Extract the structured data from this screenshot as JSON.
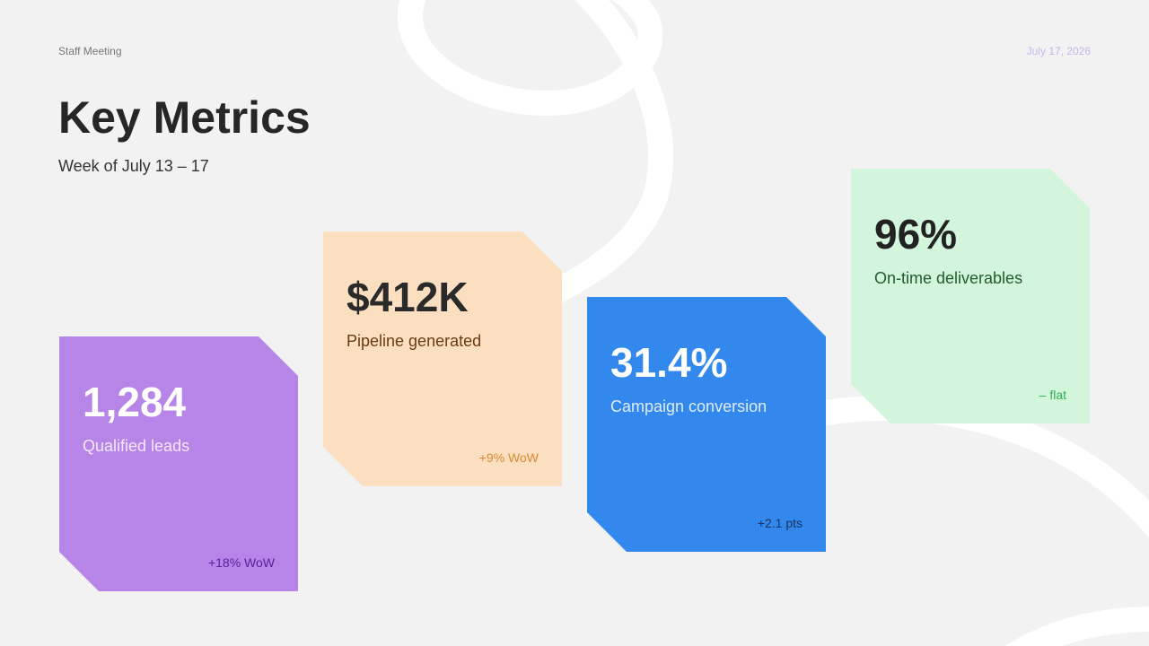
{
  "header": {
    "label": "Staff Meeting",
    "date": "July 17, 2026",
    "title": "Key Metrics",
    "subtitle": "Week of July 13 – 17"
  },
  "cards": [
    {
      "value": "1,284",
      "label": "Qualified leads",
      "delta": "+18% WoW"
    },
    {
      "value": "$412K",
      "label": "Pipeline generated",
      "delta": "+9% WoW"
    },
    {
      "value": "31.4%",
      "label": "Campaign conversion",
      "delta": "+2.1 pts"
    },
    {
      "value": "96%",
      "label": "On-time deliverables",
      "delta": "– flat"
    }
  ]
}
